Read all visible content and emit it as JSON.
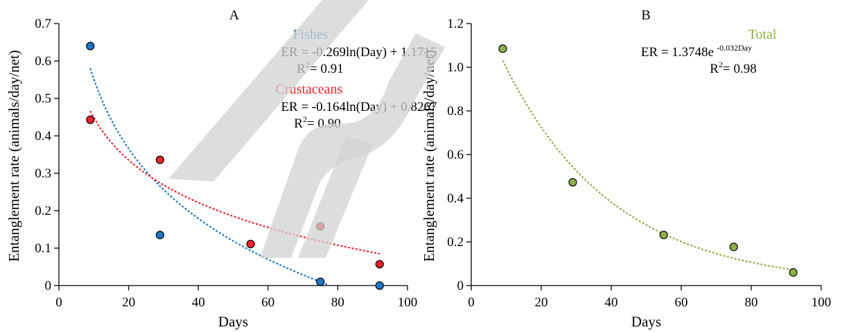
{
  "chart_data": [
    {
      "type": "scatter",
      "panel_label": "A",
      "xlabel": "Days",
      "ylabel": "Entanglement rate (animals/day/net)",
      "xlim": [
        0,
        100
      ],
      "ylim": [
        0,
        0.7
      ],
      "xticks": [
        0,
        20,
        40,
        60,
        80,
        100
      ],
      "yticks": [
        0,
        0.1,
        0.2,
        0.3,
        0.4,
        0.5,
        0.6,
        0.7
      ],
      "ytick_labels": [
        "0",
        "0.1",
        "0.2",
        "0.3",
        "0.4",
        "0.5",
        "0.6",
        "0.7"
      ],
      "series": [
        {
          "name": "Fishes",
          "color": "#1f77c4",
          "x": [
            9,
            29,
            75,
            92
          ],
          "y": [
            0.64,
            0.135,
            0.01,
            0.0
          ],
          "fit": {
            "kind": "log",
            "a": -0.269,
            "b": 1.1715,
            "x_range": [
              9,
              77
            ]
          },
          "equation_prefix": "ER = -0.269ln(Day) + 1.1715",
          "r2_prefix": "R",
          "r2_sup": "2",
          "r2_value": "= 0.91"
        },
        {
          "name": "Crustaceans",
          "color": "#e8262b",
          "x": [
            9,
            29,
            55,
            75,
            92
          ],
          "y": [
            0.443,
            0.336,
            0.111,
            0.158,
            0.057
          ],
          "fit": {
            "kind": "log",
            "a": -0.164,
            "b": 0.8267,
            "x_range": [
              9,
              92
            ]
          },
          "equation_prefix": "ER = -0.164ln(Day) + 0.8267",
          "r2_prefix": "R",
          "r2_sup": "2",
          "r2_value": "= 0.90"
        }
      ]
    },
    {
      "type": "scatter",
      "panel_label": "B",
      "xlabel": "Days",
      "ylabel": "Entanglement rate (animals/day/net)",
      "xlim": [
        0,
        100
      ],
      "ylim": [
        0,
        1.2
      ],
      "xticks": [
        0,
        20,
        40,
        60,
        80,
        100
      ],
      "yticks": [
        0,
        0.2,
        0.4,
        0.6,
        0.8,
        1.0,
        1.2
      ],
      "ytick_labels": [
        "0",
        "0.2",
        "0.4",
        "0.6",
        "0.8",
        "1.0",
        "1.2"
      ],
      "series": [
        {
          "name": "Total",
          "color": "#8db04a",
          "x": [
            9,
            29,
            55,
            75,
            92
          ],
          "y": [
            1.085,
            0.473,
            0.232,
            0.177,
            0.06
          ],
          "fit": {
            "kind": "exp",
            "a": 1.3748,
            "b": -0.032,
            "x_range": [
              9,
              92
            ]
          },
          "equation_prefix": "ER = 1.3748e",
          "equation_sup": "-0.032Day",
          "r2_prefix": "R",
          "r2_sup": "2",
          "r2_value": "= 0.98"
        }
      ]
    }
  ],
  "watermark": {
    "text": "Im",
    "color": "#d2d2d2"
  }
}
